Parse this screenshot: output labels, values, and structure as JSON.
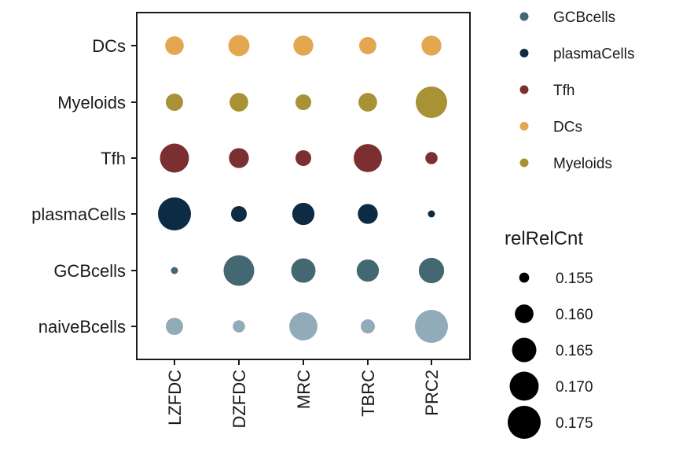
{
  "chart_data": {
    "type": "scatter",
    "subtype": "dot-plot",
    "title": "",
    "xlabel": "",
    "ylabel": "",
    "x_categories": [
      "LZFDC",
      "DZFDC",
      "MRC",
      "TBRC",
      "PRC2"
    ],
    "y_categories": [
      "naiveBcells",
      "GCBcells",
      "plasmaCells",
      "Tfh",
      "Myeloids",
      "DCs"
    ],
    "colors": {
      "naiveBcells": "#91abb9",
      "GCBcells": "#446872",
      "plasmaCells": "#0e2b44",
      "Tfh": "#7c2f30",
      "Myeloids": "#a89235",
      "DCs": "#e5a650"
    },
    "points": [
      {
        "x": "LZFDC",
        "y": "DCs",
        "value": 0.16
      },
      {
        "x": "DZFDC",
        "y": "DCs",
        "value": 0.162
      },
      {
        "x": "MRC",
        "y": "DCs",
        "value": 0.161
      },
      {
        "x": "TBRC",
        "y": "DCs",
        "value": 0.159
      },
      {
        "x": "PRC2",
        "y": "DCs",
        "value": 0.161
      },
      {
        "x": "LZFDC",
        "y": "Myeloids",
        "value": 0.159
      },
      {
        "x": "DZFDC",
        "y": "Myeloids",
        "value": 0.16
      },
      {
        "x": "MRC",
        "y": "Myeloids",
        "value": 0.158
      },
      {
        "x": "TBRC",
        "y": "Myeloids",
        "value": 0.16
      },
      {
        "x": "PRC2",
        "y": "Myeloids",
        "value": 0.173
      },
      {
        "x": "LZFDC",
        "y": "Tfh",
        "value": 0.17
      },
      {
        "x": "DZFDC",
        "y": "Tfh",
        "value": 0.161
      },
      {
        "x": "MRC",
        "y": "Tfh",
        "value": 0.158
      },
      {
        "x": "TBRC",
        "y": "Tfh",
        "value": 0.169
      },
      {
        "x": "PRC2",
        "y": "Tfh",
        "value": 0.156
      },
      {
        "x": "LZFDC",
        "y": "plasmaCells",
        "value": 0.175
      },
      {
        "x": "DZFDC",
        "y": "plasmaCells",
        "value": 0.158
      },
      {
        "x": "MRC",
        "y": "plasmaCells",
        "value": 0.163
      },
      {
        "x": "TBRC",
        "y": "plasmaCells",
        "value": 0.161
      },
      {
        "x": "PRC2",
        "y": "plasmaCells",
        "value": 0.154
      },
      {
        "x": "LZFDC",
        "y": "GCBcells",
        "value": 0.154
      },
      {
        "x": "DZFDC",
        "y": "GCBcells",
        "value": 0.172
      },
      {
        "x": "MRC",
        "y": "GCBcells",
        "value": 0.165
      },
      {
        "x": "TBRC",
        "y": "GCBcells",
        "value": 0.163
      },
      {
        "x": "PRC2",
        "y": "GCBcells",
        "value": 0.166
      },
      {
        "x": "LZFDC",
        "y": "naiveBcells",
        "value": 0.159
      },
      {
        "x": "DZFDC",
        "y": "naiveBcells",
        "value": 0.156
      },
      {
        "x": "MRC",
        "y": "naiveBcells",
        "value": 0.169
      },
      {
        "x": "TBRC",
        "y": "naiveBcells",
        "value": 0.157
      },
      {
        "x": "PRC2",
        "y": "naiveBcells",
        "value": 0.175
      }
    ],
    "color_legend": {
      "entries": [
        "GCBcells",
        "plasmaCells",
        "Tfh",
        "DCs",
        "Myeloids"
      ]
    },
    "size_legend": {
      "title": "relRelCnt",
      "values": [
        0.155,
        0.16,
        0.165,
        0.17,
        0.175
      ],
      "labels": [
        "0.155",
        "0.160",
        "0.165",
        "0.170",
        "0.175"
      ]
    },
    "size_range": [
      0.154,
      0.175
    ],
    "grid": false,
    "legend_position": "right"
  }
}
